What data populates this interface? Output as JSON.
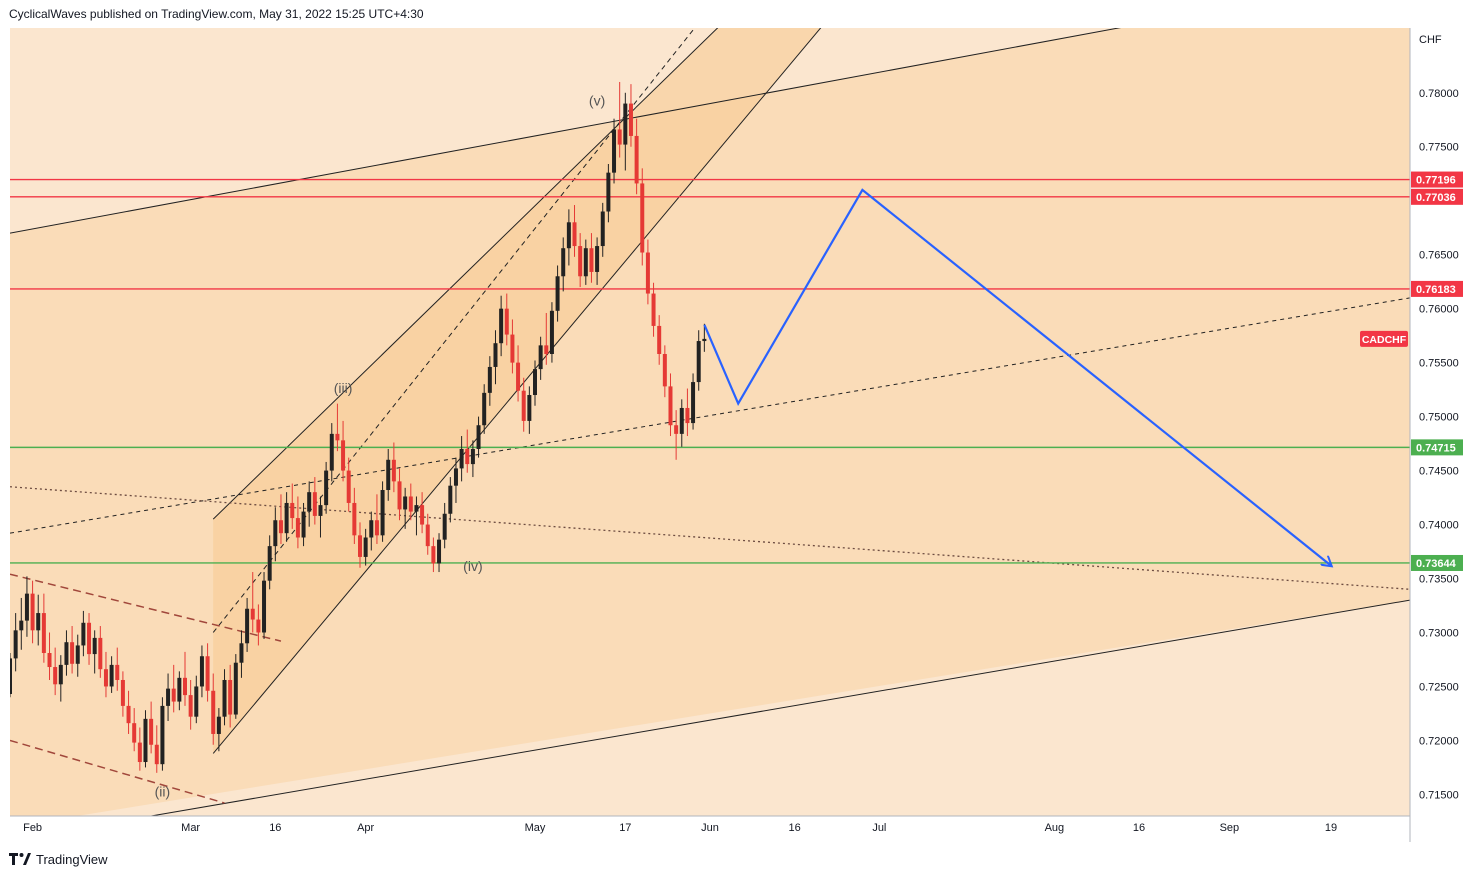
{
  "header": {
    "published": "CyclicalWaves published on TradingView.com, May 31, 2022 15:25 UTC+4:30"
  },
  "footer": {
    "brand": "TradingView"
  },
  "chart_data": {
    "type": "candlestick",
    "symbol": "CADCHF",
    "currency": "CHF",
    "y_range": [
      0.713,
      0.786
    ],
    "y_ticks": [
      0.715,
      0.72,
      0.725,
      0.73,
      0.735,
      0.74,
      0.745,
      0.75,
      0.755,
      0.76,
      0.765,
      0.775,
      0.78
    ],
    "y_tick_labels": [
      "0.71500",
      "0.72000",
      "0.72500",
      "0.73000",
      "0.73500",
      "0.74000",
      "0.74500",
      "0.75000",
      "0.75500",
      "0.76000",
      "0.76500",
      "0.77500",
      "0.78000"
    ],
    "x_ticks": [
      {
        "date": "2022-02-01",
        "label": "Feb"
      },
      {
        "date": "2022-03-01",
        "label": "Mar"
      },
      {
        "date": "2022-03-16",
        "label": "16"
      },
      {
        "date": "2022-04-01",
        "label": "Apr"
      },
      {
        "date": "2022-05-01",
        "label": "May"
      },
      {
        "date": "2022-05-17",
        "label": "17"
      },
      {
        "date": "2022-06-01",
        "label": "Jun"
      },
      {
        "date": "2022-06-16",
        "label": "16"
      },
      {
        "date": "2022-07-01",
        "label": "Jul"
      },
      {
        "date": "2022-08-01",
        "label": "Aug"
      },
      {
        "date": "2022-08-16",
        "label": "16"
      },
      {
        "date": "2022-09-01",
        "label": "Sep"
      },
      {
        "date": "2022-09-19",
        "label": "19"
      }
    ],
    "horizontal_levels": [
      {
        "value": 0.77196,
        "label": "0.77196",
        "color": "#f23645"
      },
      {
        "value": 0.77036,
        "label": "0.77036",
        "color": "#f23645"
      },
      {
        "value": 0.76183,
        "label": "0.76183",
        "color": "#f23645"
      },
      {
        "value": 0.74715,
        "label": "0.74715",
        "color": "#4caf50"
      },
      {
        "value": 0.73644,
        "label": "0.73644",
        "color": "#4caf50"
      }
    ],
    "symbol_badge": {
      "label": "CADCHF",
      "value": 0.7572,
      "color": "#f23645"
    },
    "wave_labels": [
      {
        "text": "(ii)",
        "date": "2022-02-24",
        "value": 0.7148
      },
      {
        "text": "(iii)",
        "date": "2022-03-28",
        "value": 0.7522
      },
      {
        "text": "(iv)",
        "date": "2022-04-20",
        "value": 0.7357
      },
      {
        "text": "(v)",
        "date": "2022-05-12",
        "value": 0.7788
      }
    ],
    "projection_path": [
      {
        "date": "2022-05-31",
        "value": 0.7585
      },
      {
        "date": "2022-06-06",
        "value": 0.7512
      },
      {
        "date": "2022-06-28",
        "value": 0.771
      },
      {
        "date": "2022-09-19",
        "value": 0.7362
      }
    ],
    "candles": [
      {
        "d": "2022-01-28",
        "o": 0.7243,
        "h": 0.7281,
        "l": 0.724,
        "c": 0.7276
      },
      {
        "d": "2022-01-29",
        "o": 0.7276,
        "h": 0.7318,
        "l": 0.7264,
        "c": 0.7302
      },
      {
        "d": "2022-01-30",
        "o": 0.7302,
        "h": 0.7332,
        "l": 0.7284,
        "c": 0.7311
      },
      {
        "d": "2022-01-31",
        "o": 0.7311,
        "h": 0.7352,
        "l": 0.7296,
        "c": 0.7336
      },
      {
        "d": "2022-02-01",
        "o": 0.7336,
        "h": 0.7348,
        "l": 0.729,
        "c": 0.7302
      },
      {
        "d": "2022-02-02",
        "o": 0.7302,
        "h": 0.7335,
        "l": 0.7288,
        "c": 0.7318
      },
      {
        "d": "2022-02-03",
        "o": 0.7318,
        "h": 0.7336,
        "l": 0.7272,
        "c": 0.7281
      },
      {
        "d": "2022-02-04",
        "o": 0.7281,
        "h": 0.73,
        "l": 0.7256,
        "c": 0.7268
      },
      {
        "d": "2022-02-05",
        "o": 0.7268,
        "h": 0.7286,
        "l": 0.7242,
        "c": 0.7252
      },
      {
        "d": "2022-02-06",
        "o": 0.7252,
        "h": 0.7279,
        "l": 0.7236,
        "c": 0.727
      },
      {
        "d": "2022-02-07",
        "o": 0.727,
        "h": 0.7302,
        "l": 0.726,
        "c": 0.7291
      },
      {
        "d": "2022-02-08",
        "o": 0.7291,
        "h": 0.7306,
        "l": 0.7262,
        "c": 0.7271
      },
      {
        "d": "2022-02-09",
        "o": 0.7271,
        "h": 0.7298,
        "l": 0.7259,
        "c": 0.7288
      },
      {
        "d": "2022-02-10",
        "o": 0.7288,
        "h": 0.732,
        "l": 0.7278,
        "c": 0.7309
      },
      {
        "d": "2022-02-11",
        "o": 0.7309,
        "h": 0.7318,
        "l": 0.727,
        "c": 0.728
      },
      {
        "d": "2022-02-12",
        "o": 0.728,
        "h": 0.7302,
        "l": 0.7262,
        "c": 0.7295
      },
      {
        "d": "2022-02-13",
        "o": 0.7295,
        "h": 0.7306,
        "l": 0.7258,
        "c": 0.7266
      },
      {
        "d": "2022-02-14",
        "o": 0.7266,
        "h": 0.7282,
        "l": 0.724,
        "c": 0.725
      },
      {
        "d": "2022-02-15",
        "o": 0.725,
        "h": 0.7278,
        "l": 0.7244,
        "c": 0.727
      },
      {
        "d": "2022-02-16",
        "o": 0.727,
        "h": 0.7286,
        "l": 0.7246,
        "c": 0.7256
      },
      {
        "d": "2022-02-17",
        "o": 0.7256,
        "h": 0.7264,
        "l": 0.7222,
        "c": 0.7232
      },
      {
        "d": "2022-02-18",
        "o": 0.7232,
        "h": 0.7246,
        "l": 0.7206,
        "c": 0.7216
      },
      {
        "d": "2022-02-19",
        "o": 0.7216,
        "h": 0.723,
        "l": 0.719,
        "c": 0.7198
      },
      {
        "d": "2022-02-20",
        "o": 0.7198,
        "h": 0.7212,
        "l": 0.7172,
        "c": 0.718
      },
      {
        "d": "2022-02-21",
        "o": 0.718,
        "h": 0.7228,
        "l": 0.7175,
        "c": 0.722
      },
      {
        "d": "2022-02-22",
        "o": 0.722,
        "h": 0.7236,
        "l": 0.7188,
        "c": 0.7196
      },
      {
        "d": "2022-02-23",
        "o": 0.7196,
        "h": 0.7214,
        "l": 0.717,
        "c": 0.7178
      },
      {
        "d": "2022-02-24",
        "o": 0.7178,
        "h": 0.724,
        "l": 0.7172,
        "c": 0.7232
      },
      {
        "d": "2022-02-25",
        "o": 0.7232,
        "h": 0.7262,
        "l": 0.7218,
        "c": 0.7248
      },
      {
        "d": "2022-02-26",
        "o": 0.7248,
        "h": 0.727,
        "l": 0.7226,
        "c": 0.7236
      },
      {
        "d": "2022-02-27",
        "o": 0.7236,
        "h": 0.7264,
        "l": 0.7228,
        "c": 0.7258
      },
      {
        "d": "2022-02-28",
        "o": 0.7258,
        "h": 0.7282,
        "l": 0.7232,
        "c": 0.7242
      },
      {
        "d": "2022-03-01",
        "o": 0.7242,
        "h": 0.7256,
        "l": 0.721,
        "c": 0.7222
      },
      {
        "d": "2022-03-02",
        "o": 0.7222,
        "h": 0.726,
        "l": 0.7216,
        "c": 0.725
      },
      {
        "d": "2022-03-03",
        "o": 0.725,
        "h": 0.7288,
        "l": 0.724,
        "c": 0.7278
      },
      {
        "d": "2022-03-04",
        "o": 0.7278,
        "h": 0.729,
        "l": 0.7236,
        "c": 0.7246
      },
      {
        "d": "2022-03-05",
        "o": 0.7246,
        "h": 0.7262,
        "l": 0.7196,
        "c": 0.7206
      },
      {
        "d": "2022-03-06",
        "o": 0.7206,
        "h": 0.723,
        "l": 0.719,
        "c": 0.7222
      },
      {
        "d": "2022-03-07",
        "o": 0.7222,
        "h": 0.7266,
        "l": 0.7214,
        "c": 0.7256
      },
      {
        "d": "2022-03-08",
        "o": 0.7256,
        "h": 0.727,
        "l": 0.7212,
        "c": 0.7224
      },
      {
        "d": "2022-03-09",
        "o": 0.7224,
        "h": 0.728,
        "l": 0.722,
        "c": 0.7272
      },
      {
        "d": "2022-03-10",
        "o": 0.7272,
        "h": 0.7302,
        "l": 0.7258,
        "c": 0.729
      },
      {
        "d": "2022-03-11",
        "o": 0.729,
        "h": 0.7332,
        "l": 0.7282,
        "c": 0.7322
      },
      {
        "d": "2022-03-12",
        "o": 0.7322,
        "h": 0.7356,
        "l": 0.73,
        "c": 0.7312
      },
      {
        "d": "2022-03-13",
        "o": 0.7312,
        "h": 0.7326,
        "l": 0.7288,
        "c": 0.73
      },
      {
        "d": "2022-03-14",
        "o": 0.73,
        "h": 0.7356,
        "l": 0.7294,
        "c": 0.7348
      },
      {
        "d": "2022-03-15",
        "o": 0.7348,
        "h": 0.739,
        "l": 0.734,
        "c": 0.738
      },
      {
        "d": "2022-03-16",
        "o": 0.738,
        "h": 0.7416,
        "l": 0.7366,
        "c": 0.7404
      },
      {
        "d": "2022-03-17",
        "o": 0.7404,
        "h": 0.7428,
        "l": 0.7382,
        "c": 0.7392
      },
      {
        "d": "2022-03-18",
        "o": 0.7392,
        "h": 0.743,
        "l": 0.7384,
        "c": 0.742
      },
      {
        "d": "2022-03-19",
        "o": 0.742,
        "h": 0.7438,
        "l": 0.7396,
        "c": 0.7406
      },
      {
        "d": "2022-03-20",
        "o": 0.7406,
        "h": 0.7426,
        "l": 0.7378,
        "c": 0.7388
      },
      {
        "d": "2022-03-21",
        "o": 0.7388,
        "h": 0.742,
        "l": 0.738,
        "c": 0.7412
      },
      {
        "d": "2022-03-22",
        "o": 0.7412,
        "h": 0.744,
        "l": 0.7398,
        "c": 0.743
      },
      {
        "d": "2022-03-23",
        "o": 0.743,
        "h": 0.7444,
        "l": 0.74,
        "c": 0.7408
      },
      {
        "d": "2022-03-24",
        "o": 0.7408,
        "h": 0.7426,
        "l": 0.7388,
        "c": 0.7418
      },
      {
        "d": "2022-03-25",
        "o": 0.7418,
        "h": 0.7458,
        "l": 0.741,
        "c": 0.745
      },
      {
        "d": "2022-03-26",
        "o": 0.745,
        "h": 0.7494,
        "l": 0.744,
        "c": 0.7484
      },
      {
        "d": "2022-03-27",
        "o": 0.7484,
        "h": 0.7512,
        "l": 0.7468,
        "c": 0.7478
      },
      {
        "d": "2022-03-28",
        "o": 0.7478,
        "h": 0.7496,
        "l": 0.744,
        "c": 0.745
      },
      {
        "d": "2022-03-29",
        "o": 0.745,
        "h": 0.7462,
        "l": 0.7412,
        "c": 0.742
      },
      {
        "d": "2022-03-30",
        "o": 0.742,
        "h": 0.7434,
        "l": 0.7382,
        "c": 0.739
      },
      {
        "d": "2022-03-31",
        "o": 0.739,
        "h": 0.7402,
        "l": 0.736,
        "c": 0.737
      },
      {
        "d": "2022-04-01",
        "o": 0.737,
        "h": 0.7396,
        "l": 0.7362,
        "c": 0.7388
      },
      {
        "d": "2022-04-02",
        "o": 0.7388,
        "h": 0.7412,
        "l": 0.7376,
        "c": 0.7404
      },
      {
        "d": "2022-04-03",
        "o": 0.7404,
        "h": 0.7428,
        "l": 0.7382,
        "c": 0.739
      },
      {
        "d": "2022-04-04",
        "o": 0.739,
        "h": 0.744,
        "l": 0.7384,
        "c": 0.7432
      },
      {
        "d": "2022-04-05",
        "o": 0.7432,
        "h": 0.747,
        "l": 0.7422,
        "c": 0.746
      },
      {
        "d": "2022-04-06",
        "o": 0.746,
        "h": 0.7476,
        "l": 0.743,
        "c": 0.744
      },
      {
        "d": "2022-04-07",
        "o": 0.744,
        "h": 0.7452,
        "l": 0.7404,
        "c": 0.7414
      },
      {
        "d": "2022-04-08",
        "o": 0.7414,
        "h": 0.7434,
        "l": 0.7396,
        "c": 0.7426
      },
      {
        "d": "2022-04-09",
        "o": 0.7426,
        "h": 0.7438,
        "l": 0.7404,
        "c": 0.7412
      },
      {
        "d": "2022-04-10",
        "o": 0.7412,
        "h": 0.7426,
        "l": 0.739,
        "c": 0.7418
      },
      {
        "d": "2022-04-11",
        "o": 0.7418,
        "h": 0.743,
        "l": 0.7392,
        "c": 0.74
      },
      {
        "d": "2022-04-12",
        "o": 0.74,
        "h": 0.741,
        "l": 0.7372,
        "c": 0.738
      },
      {
        "d": "2022-04-13",
        "o": 0.738,
        "h": 0.7388,
        "l": 0.7356,
        "c": 0.7364
      },
      {
        "d": "2022-04-14",
        "o": 0.7364,
        "h": 0.7392,
        "l": 0.7356,
        "c": 0.7386
      },
      {
        "d": "2022-04-15",
        "o": 0.7386,
        "h": 0.742,
        "l": 0.7378,
        "c": 0.741
      },
      {
        "d": "2022-04-16",
        "o": 0.741,
        "h": 0.7444,
        "l": 0.7402,
        "c": 0.7436
      },
      {
        "d": "2022-04-17",
        "o": 0.7436,
        "h": 0.7462,
        "l": 0.742,
        "c": 0.7452
      },
      {
        "d": "2022-04-18",
        "o": 0.7452,
        "h": 0.7482,
        "l": 0.744,
        "c": 0.747
      },
      {
        "d": "2022-04-19",
        "o": 0.747,
        "h": 0.7488,
        "l": 0.7448,
        "c": 0.7456
      },
      {
        "d": "2022-04-20",
        "o": 0.7456,
        "h": 0.7478,
        "l": 0.7444,
        "c": 0.747
      },
      {
        "d": "2022-04-21",
        "o": 0.747,
        "h": 0.75,
        "l": 0.7462,
        "c": 0.7492
      },
      {
        "d": "2022-04-22",
        "o": 0.7492,
        "h": 0.753,
        "l": 0.7484,
        "c": 0.7522
      },
      {
        "d": "2022-04-23",
        "o": 0.7522,
        "h": 0.7556,
        "l": 0.751,
        "c": 0.7546
      },
      {
        "d": "2022-04-24",
        "o": 0.7546,
        "h": 0.758,
        "l": 0.753,
        "c": 0.7568
      },
      {
        "d": "2022-04-25",
        "o": 0.7568,
        "h": 0.7612,
        "l": 0.7556,
        "c": 0.76
      },
      {
        "d": "2022-04-26",
        "o": 0.76,
        "h": 0.7614,
        "l": 0.7566,
        "c": 0.7576
      },
      {
        "d": "2022-04-27",
        "o": 0.7576,
        "h": 0.759,
        "l": 0.754,
        "c": 0.755
      },
      {
        "d": "2022-04-28",
        "o": 0.755,
        "h": 0.7566,
        "l": 0.7514,
        "c": 0.7524
      },
      {
        "d": "2022-04-29",
        "o": 0.7524,
        "h": 0.7536,
        "l": 0.7486,
        "c": 0.7496
      },
      {
        "d": "2022-04-30",
        "o": 0.7496,
        "h": 0.7528,
        "l": 0.7484,
        "c": 0.752
      },
      {
        "d": "2022-05-01",
        "o": 0.752,
        "h": 0.7552,
        "l": 0.751,
        "c": 0.7544
      },
      {
        "d": "2022-05-02",
        "o": 0.7544,
        "h": 0.7574,
        "l": 0.7534,
        "c": 0.7566
      },
      {
        "d": "2022-05-03",
        "o": 0.7566,
        "h": 0.7596,
        "l": 0.7548,
        "c": 0.7558
      },
      {
        "d": "2022-05-04",
        "o": 0.7558,
        "h": 0.7606,
        "l": 0.755,
        "c": 0.7598
      },
      {
        "d": "2022-05-05",
        "o": 0.7598,
        "h": 0.764,
        "l": 0.7588,
        "c": 0.763
      },
      {
        "d": "2022-05-06",
        "o": 0.763,
        "h": 0.7666,
        "l": 0.7616,
        "c": 0.7656
      },
      {
        "d": "2022-05-07",
        "o": 0.7656,
        "h": 0.7692,
        "l": 0.764,
        "c": 0.768
      },
      {
        "d": "2022-05-08",
        "o": 0.768,
        "h": 0.7696,
        "l": 0.7648,
        "c": 0.7658
      },
      {
        "d": "2022-05-09",
        "o": 0.7658,
        "h": 0.767,
        "l": 0.762,
        "c": 0.763
      },
      {
        "d": "2022-05-10",
        "o": 0.763,
        "h": 0.7664,
        "l": 0.7622,
        "c": 0.7656
      },
      {
        "d": "2022-05-11",
        "o": 0.7656,
        "h": 0.767,
        "l": 0.7624,
        "c": 0.7634
      },
      {
        "d": "2022-05-12",
        "o": 0.7634,
        "h": 0.7666,
        "l": 0.7622,
        "c": 0.7658
      },
      {
        "d": "2022-05-13",
        "o": 0.7658,
        "h": 0.7698,
        "l": 0.7648,
        "c": 0.769
      },
      {
        "d": "2022-05-14",
        "o": 0.769,
        "h": 0.7734,
        "l": 0.768,
        "c": 0.7726
      },
      {
        "d": "2022-05-15",
        "o": 0.7726,
        "h": 0.7776,
        "l": 0.7716,
        "c": 0.7766
      },
      {
        "d": "2022-05-16",
        "o": 0.7766,
        "h": 0.781,
        "l": 0.774,
        "c": 0.7752
      },
      {
        "d": "2022-05-17",
        "o": 0.7752,
        "h": 0.78,
        "l": 0.7728,
        "c": 0.779
      },
      {
        "d": "2022-05-18",
        "o": 0.779,
        "h": 0.7808,
        "l": 0.775,
        "c": 0.776
      },
      {
        "d": "2022-05-19",
        "o": 0.776,
        "h": 0.7776,
        "l": 0.7706,
        "c": 0.7716
      },
      {
        "d": "2022-05-20",
        "o": 0.7716,
        "h": 0.773,
        "l": 0.764,
        "c": 0.7652
      },
      {
        "d": "2022-05-21",
        "o": 0.7652,
        "h": 0.7664,
        "l": 0.7604,
        "c": 0.7614
      },
      {
        "d": "2022-05-22",
        "o": 0.7614,
        "h": 0.7624,
        "l": 0.7574,
        "c": 0.7584
      },
      {
        "d": "2022-05-23",
        "o": 0.7584,
        "h": 0.7594,
        "l": 0.7548,
        "c": 0.7558
      },
      {
        "d": "2022-05-24",
        "o": 0.7558,
        "h": 0.7566,
        "l": 0.7518,
        "c": 0.7528
      },
      {
        "d": "2022-05-25",
        "o": 0.7528,
        "h": 0.754,
        "l": 0.7482,
        "c": 0.7492
      },
      {
        "d": "2022-05-26",
        "o": 0.7492,
        "h": 0.7506,
        "l": 0.746,
        "c": 0.7484
      },
      {
        "d": "2022-05-27",
        "o": 0.7484,
        "h": 0.7516,
        "l": 0.7472,
        "c": 0.7508
      },
      {
        "d": "2022-05-28",
        "o": 0.7508,
        "h": 0.7526,
        "l": 0.7482,
        "c": 0.7494
      },
      {
        "d": "2022-05-29",
        "o": 0.7494,
        "h": 0.754,
        "l": 0.7488,
        "c": 0.7532
      },
      {
        "d": "2022-05-30",
        "o": 0.7532,
        "h": 0.758,
        "l": 0.7524,
        "c": 0.757
      },
      {
        "d": "2022-05-31",
        "o": 0.757,
        "h": 0.7586,
        "l": 0.756,
        "c": 0.7572
      }
    ]
  }
}
